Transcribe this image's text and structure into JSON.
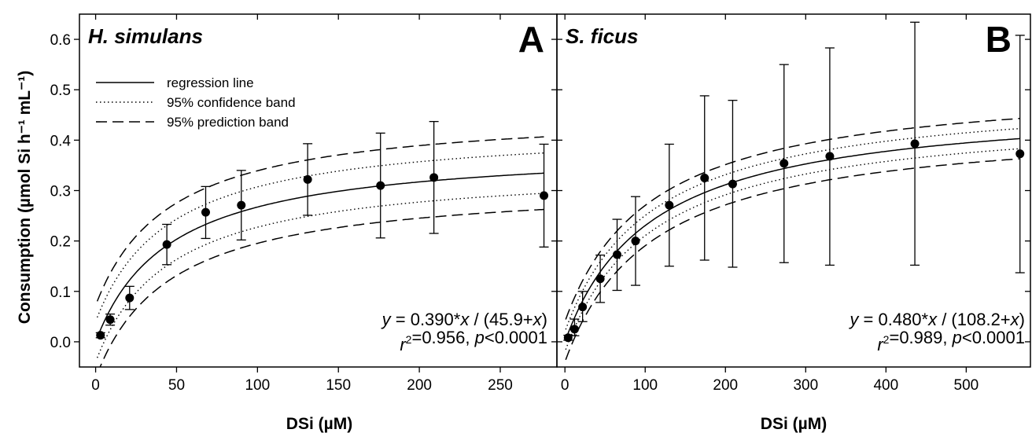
{
  "ylabel": "Consumption (µmol Si h⁻¹ mL⁻¹)",
  "legend": {
    "regression": "regression line",
    "confidence": "95% confidence band",
    "prediction": "95% prediction band"
  },
  "chart_data": [
    {
      "type": "scatter",
      "panel_letter": "A",
      "species": "H. simulans",
      "xlabel": "DSi (µM)",
      "xlim": [
        -10,
        285
      ],
      "ylim": [
        -0.05,
        0.65
      ],
      "xticks": [
        0,
        50,
        100,
        150,
        200,
        250
      ],
      "yticks": [
        0.0,
        0.1,
        0.2,
        0.3,
        0.4,
        0.5,
        0.6
      ],
      "equation": "y = 0.390*x / (45.9+x)",
      "stats": "r2=0.956, p<0.0001",
      "fit": {
        "vmax": 0.39,
        "km": 45.9,
        "ci_halfwidth": 0.04,
        "pi_halfwidth": 0.072
      },
      "points": [
        {
          "x": 3,
          "y": 0.013,
          "err_low": 0.008,
          "err_high": 0.018
        },
        {
          "x": 9,
          "y": 0.044,
          "err_low": 0.033,
          "err_high": 0.055
        },
        {
          "x": 21,
          "y": 0.087,
          "err_low": 0.064,
          "err_high": 0.11
        },
        {
          "x": 44,
          "y": 0.193,
          "err_low": 0.153,
          "err_high": 0.233
        },
        {
          "x": 68,
          "y": 0.257,
          "err_low": 0.205,
          "err_high": 0.308
        },
        {
          "x": 90,
          "y": 0.271,
          "err_low": 0.202,
          "err_high": 0.34
        },
        {
          "x": 131,
          "y": 0.322,
          "err_low": 0.251,
          "err_high": 0.393
        },
        {
          "x": 176,
          "y": 0.31,
          "err_low": 0.206,
          "err_high": 0.414
        },
        {
          "x": 209,
          "y": 0.326,
          "err_low": 0.215,
          "err_high": 0.437
        },
        {
          "x": 277,
          "y": 0.29,
          "err_low": 0.188,
          "err_high": 0.392
        }
      ]
    },
    {
      "type": "scatter",
      "panel_letter": "B",
      "species": "S. ficus",
      "xlabel": "DSi (µM)",
      "xlim": [
        -10,
        580
      ],
      "ylim": [
        -0.05,
        0.65
      ],
      "xticks": [
        0,
        100,
        200,
        300,
        400,
        500
      ],
      "yticks": [
        0.0,
        0.1,
        0.2,
        0.3,
        0.4,
        0.5,
        0.6
      ],
      "equation": "y = 0.480*x / (108.2+x)",
      "stats": "r2=0.989, p<0.0001",
      "fit": {
        "vmax": 0.48,
        "km": 108.2,
        "ci_halfwidth": 0.02,
        "pi_halfwidth": 0.04
      },
      "points": [
        {
          "x": 4,
          "y": 0.008,
          "err_low": 0.003,
          "err_high": 0.013
        },
        {
          "x": 12,
          "y": 0.025,
          "err_low": 0.012,
          "err_high": 0.045
        },
        {
          "x": 22,
          "y": 0.069,
          "err_low": 0.04,
          "err_high": 0.1
        },
        {
          "x": 44,
          "y": 0.125,
          "err_low": 0.078,
          "err_high": 0.172
        },
        {
          "x": 65,
          "y": 0.173,
          "err_low": 0.102,
          "err_high": 0.243
        },
        {
          "x": 88,
          "y": 0.2,
          "err_low": 0.112,
          "err_high": 0.288
        },
        {
          "x": 130,
          "y": 0.271,
          "err_low": 0.15,
          "err_high": 0.392
        },
        {
          "x": 174,
          "y": 0.325,
          "err_low": 0.162,
          "err_high": 0.488
        },
        {
          "x": 209,
          "y": 0.313,
          "err_low": 0.148,
          "err_high": 0.479
        },
        {
          "x": 273,
          "y": 0.354,
          "err_low": 0.157,
          "err_high": 0.55
        },
        {
          "x": 330,
          "y": 0.368,
          "err_low": 0.152,
          "err_high": 0.583
        },
        {
          "x": 436,
          "y": 0.393,
          "err_low": 0.152,
          "err_high": 0.634
        },
        {
          "x": 567,
          "y": 0.373,
          "err_low": 0.137,
          "err_high": 0.608
        }
      ]
    }
  ]
}
